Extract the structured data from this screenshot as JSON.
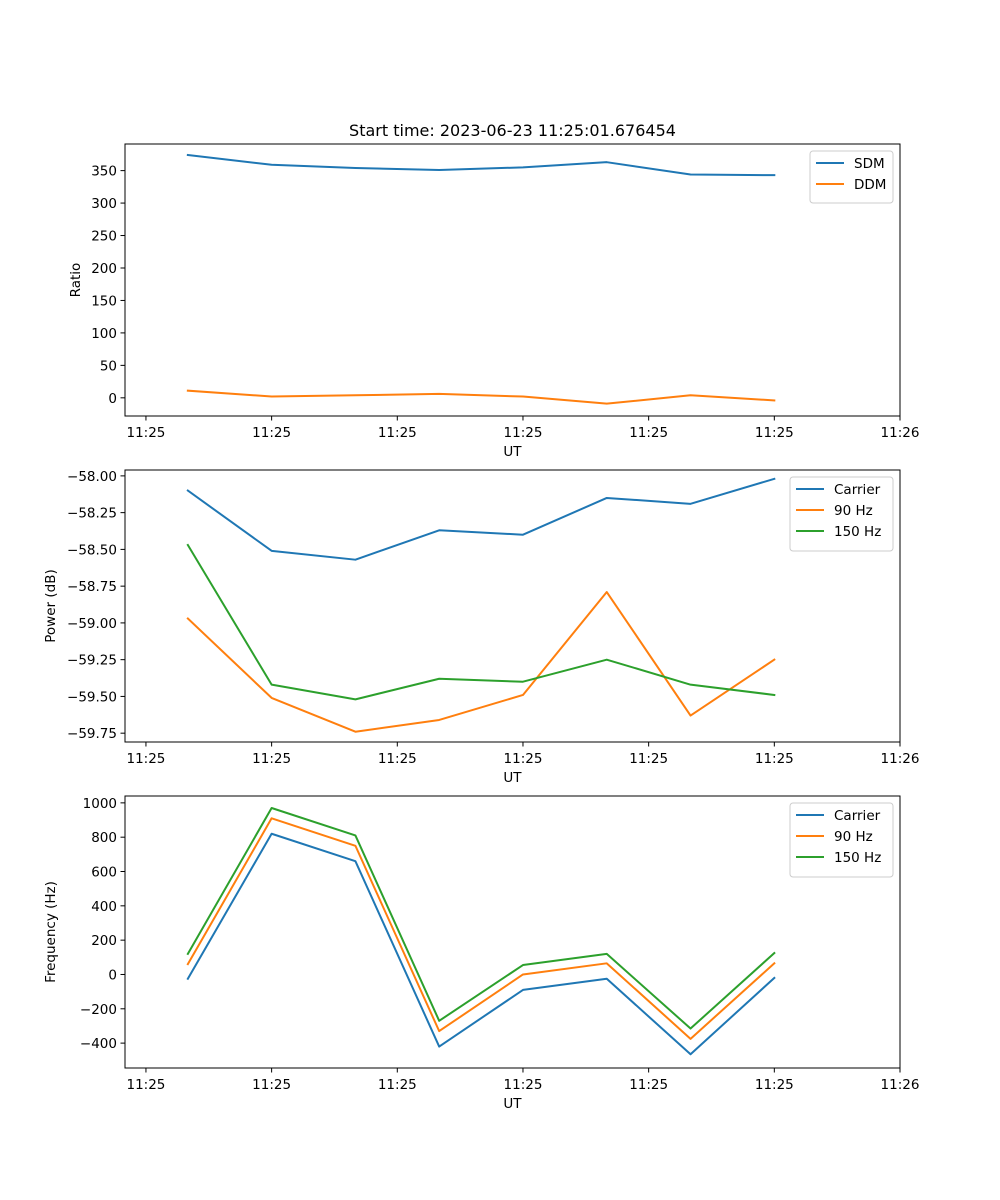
{
  "chart_data": [
    {
      "type": "line",
      "title": "Start time: 2023-06-23 11:25:01.676454",
      "xlabel": "UT",
      "ylabel": "Ratio",
      "x": [
        "11:25:02",
        "11:25:03",
        "11:25:04",
        "11:25:05",
        "11:25:06",
        "11:25:07",
        "11:25:08",
        "11:25:09"
      ],
      "xlim": [
        "11:25:01.25",
        "11:25:10.5"
      ],
      "xticks": [
        "11:25:01.5",
        "11:25:03",
        "11:25:04.5",
        "11:25:06",
        "11:25:07.5",
        "11:25:09",
        "11:25:10.5"
      ],
      "xtick_labels": [
        "11:25",
        "11:25",
        "11:25",
        "11:25",
        "11:25",
        "11:25",
        "11:26"
      ],
      "ylim": [
        -28,
        391
      ],
      "yticks": [
        0,
        50,
        100,
        150,
        200,
        250,
        300,
        350
      ],
      "grid": false,
      "legend": "upper right",
      "series": [
        {
          "name": "SDM",
          "color": "#1f77b4",
          "values": [
            374,
            359,
            354,
            351,
            355,
            363,
            344,
            343
          ]
        },
        {
          "name": "DDM",
          "color": "#ff7f0e",
          "values": [
            11,
            2,
            4,
            6,
            2,
            -9,
            4,
            -4
          ]
        }
      ]
    },
    {
      "type": "line",
      "title": "",
      "xlabel": "UT",
      "ylabel": "Power (dB)",
      "x": [
        "11:25:02",
        "11:25:03",
        "11:25:04",
        "11:25:05",
        "11:25:06",
        "11:25:07",
        "11:25:08",
        "11:25:09"
      ],
      "xlim": [
        "11:25:01.25",
        "11:25:10.5"
      ],
      "xticks": [
        "11:25:01.5",
        "11:25:03",
        "11:25:04.5",
        "11:25:06",
        "11:25:07.5",
        "11:25:09",
        "11:25:10.5"
      ],
      "xtick_labels": [
        "11:25",
        "11:25",
        "11:25",
        "11:25",
        "11:25",
        "11:25",
        "11:26"
      ],
      "ylim": [
        -59.81,
        -57.96
      ],
      "yticks": [
        -59.75,
        -59.5,
        -59.25,
        -59.0,
        -58.75,
        -58.5,
        -58.25,
        -58.0
      ],
      "ytick_labels": [
        "−59.75",
        "−59.50",
        "−59.25",
        "−59.00",
        "−58.75",
        "−58.50",
        "−58.25",
        "−58.00"
      ],
      "grid": false,
      "legend": "upper right",
      "series": [
        {
          "name": "Carrier",
          "color": "#1f77b4",
          "values": [
            -58.1,
            -58.51,
            -58.57,
            -58.37,
            -58.4,
            -58.15,
            -58.19,
            -58.02
          ]
        },
        {
          "name": "90 Hz",
          "color": "#ff7f0e",
          "values": [
            -58.97,
            -59.51,
            -59.74,
            -59.66,
            -59.49,
            -58.79,
            -59.63,
            -59.25
          ]
        },
        {
          "name": "150 Hz",
          "color": "#2ca02c",
          "values": [
            -58.47,
            -59.42,
            -59.52,
            -59.38,
            -59.4,
            -59.25,
            -59.42,
            -59.49
          ]
        }
      ]
    },
    {
      "type": "line",
      "title": "",
      "xlabel": "UT",
      "ylabel": "Frequency (Hz)",
      "x": [
        "11:25:02",
        "11:25:03",
        "11:25:04",
        "11:25:05",
        "11:25:06",
        "11:25:07",
        "11:25:08",
        "11:25:09"
      ],
      "xlim": [
        "11:25:01.25",
        "11:25:10.5"
      ],
      "xticks": [
        "11:25:01.5",
        "11:25:03",
        "11:25:04.5",
        "11:25:06",
        "11:25:07.5",
        "11:25:09",
        "11:25:10.5"
      ],
      "xtick_labels": [
        "11:25",
        "11:25",
        "11:25",
        "11:25",
        "11:25",
        "11:25",
        "11:26"
      ],
      "ylim": [
        -545,
        1040
      ],
      "yticks": [
        -400,
        -200,
        0,
        200,
        400,
        600,
        800,
        1000
      ],
      "ytick_labels": [
        "−400",
        "−200",
        "0",
        "200",
        "400",
        "600",
        "800",
        "1000"
      ],
      "grid": false,
      "legend": "upper right",
      "series": [
        {
          "name": "Carrier",
          "color": "#1f77b4",
          "values": [
            -25,
            820,
            660,
            -420,
            -90,
            -25,
            -465,
            -20
          ]
        },
        {
          "name": "90 Hz",
          "color": "#ff7f0e",
          "values": [
            60,
            910,
            750,
            -330,
            0,
            65,
            -375,
            65
          ]
        },
        {
          "name": "150 Hz",
          "color": "#2ca02c",
          "values": [
            120,
            970,
            810,
            -270,
            55,
            120,
            -315,
            125
          ]
        }
      ]
    }
  ]
}
